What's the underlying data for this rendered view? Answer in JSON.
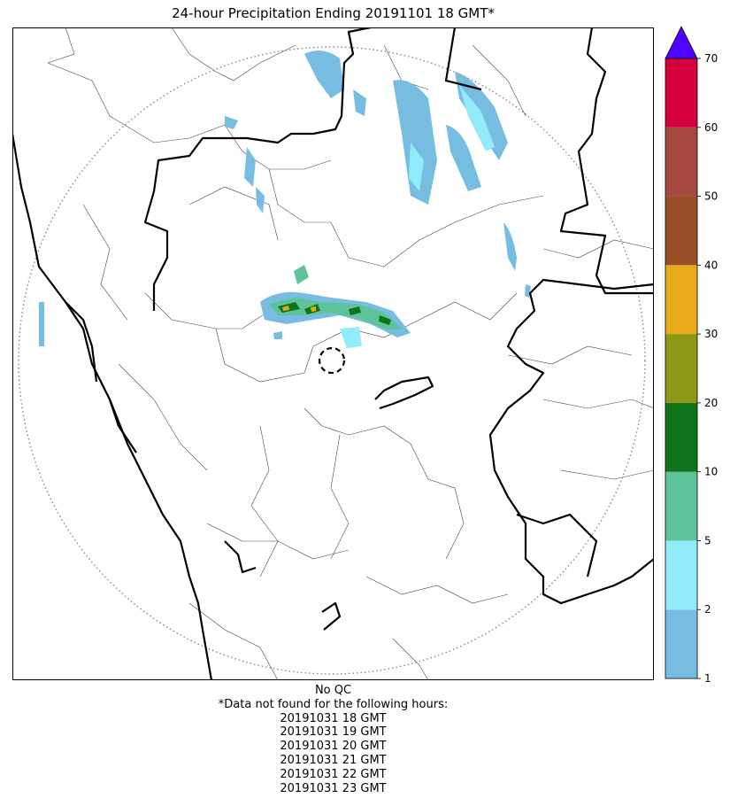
{
  "title": "24-hour Precipitation Ending 20191101 18 GMT*",
  "colorbar": {
    "labels": [
      "1",
      "2",
      "5",
      "10",
      "20",
      "30",
      "40",
      "50",
      "60",
      "70"
    ],
    "colors": [
      "#77bde2",
      "#92ebfb",
      "#5ec39a",
      "#0e7319",
      "#8e9718",
      "#e6aa1b",
      "#984e27",
      "#a54840",
      "#d6003e"
    ],
    "extend_color": "#5005ff"
  },
  "footer": {
    "qc_label": "No QC",
    "missing_note": "*Data not found for the following hours:",
    "missing_hours": [
      "20191031 18 GMT",
      "20191031 19 GMT",
      "20191031 20 GMT",
      "20191031 21 GMT",
      "20191031 22 GMT",
      "20191031 23 GMT"
    ]
  }
}
